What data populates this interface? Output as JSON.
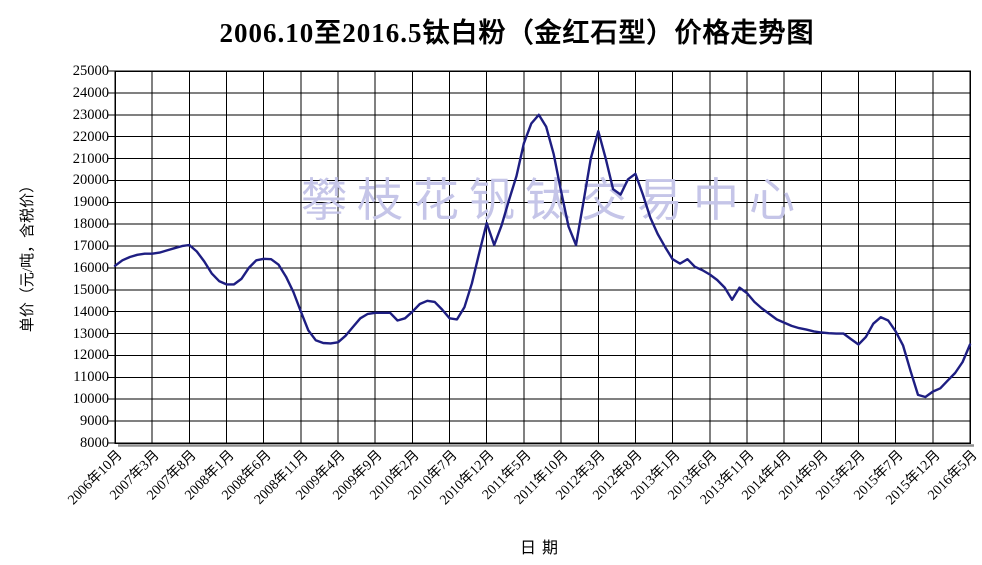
{
  "chart_data": {
    "type": "line",
    "title": "2006.10至2016.5钛白粉（金红石型）价格走势图",
    "xlabel": "日期",
    "ylabel": "单价（元/吨，含税价）",
    "watermark": "攀枝花钒钛交易中心",
    "ylim": [
      8000,
      25000
    ],
    "y_tick_step": 1000,
    "y_ticks": [
      25000,
      24000,
      23000,
      22000,
      21000,
      20000,
      19000,
      18000,
      17000,
      16000,
      15000,
      14000,
      13000,
      12000,
      11000,
      10000,
      9000,
      8000
    ],
    "x_tick_labels": [
      "2006年10月",
      "2007年3月",
      "2007年8月",
      "2008年1月",
      "2008年6月",
      "2008年11月",
      "2009年4月",
      "2009年9月",
      "2010年2月",
      "2010年7月",
      "2010年12月",
      "2011年5月",
      "2011年10月",
      "2012年3月",
      "2012年8月",
      "2013年1月",
      "2013年6月",
      "2013年11月",
      "2014年4月",
      "2014年9月",
      "2015年2月",
      "2015年7月",
      "2015年12月",
      "2016年5月"
    ],
    "months_per_tick": 5,
    "x_start": "2006年10月",
    "x_end": "2016年5月",
    "interval": "monthly",
    "grid": "both",
    "legend": "none",
    "colors": {
      "line": "#1e1e82",
      "grid": "#000000",
      "watermark": "#c5c5e8",
      "axis_shadow": "#8f8f8f",
      "text": "#000000"
    },
    "values": [
      16100,
      16350,
      16500,
      16600,
      16650,
      16650,
      16700,
      16800,
      16900,
      17000,
      17050,
      16750,
      16300,
      15750,
      15400,
      15250,
      15250,
      15500,
      16000,
      16350,
      16420,
      16400,
      16150,
      15600,
      14900,
      14000,
      13150,
      12700,
      12570,
      12550,
      12600,
      12900,
      13300,
      13700,
      13900,
      13950,
      13950,
      13950,
      13600,
      13700,
      14000,
      14350,
      14500,
      14450,
      14100,
      13700,
      13650,
      14200,
      15300,
      16700,
      18050,
      17050,
      17950,
      19100,
      20200,
      21700,
      22600,
      23000,
      22450,
      21200,
      19500,
      17900,
      17050,
      19000,
      21000,
      22250,
      21000,
      19600,
      19350,
      20050,
      20300,
      19350,
      18300,
      17550,
      16950,
      16400,
      16200,
      16400,
      16050,
      15900,
      15700,
      15450,
      15100,
      14550,
      15100,
      14850,
      14450,
      14150,
      13900,
      13650,
      13500,
      13350,
      13250,
      13180,
      13100,
      13050,
      13020,
      13000,
      13000,
      12750,
      12500,
      12850,
      13450,
      13750,
      13600,
      13100,
      12450,
      11300,
      10200,
      10100,
      10350,
      10500,
      10850,
      11200,
      11700,
      12500
    ]
  }
}
